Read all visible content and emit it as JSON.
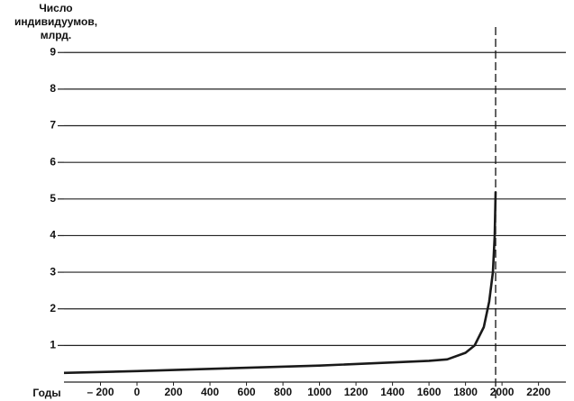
{
  "chart_data": {
    "type": "line",
    "ylabel": [
      "Число",
      "индивидуумов,",
      "млрд."
    ],
    "xlabel": "Годы",
    "x": [
      -400,
      0,
      1000,
      1600,
      1700,
      1800,
      1850,
      1900,
      1930,
      1950,
      1960,
      1965
    ],
    "series": [
      {
        "color": "#1a1a1a",
        "values": [
          0.25,
          0.3,
          0.45,
          0.58,
          0.62,
          0.8,
          1.0,
          1.5,
          2.2,
          3.0,
          4.0,
          5.2
        ]
      }
    ],
    "xlim": [
      -400,
      2350
    ],
    "ylim": [
      0,
      9.4
    ],
    "xticks": [
      {
        "value": -200,
        "label": "– 200"
      },
      0,
      200,
      400,
      600,
      800,
      1000,
      1200,
      1400,
      1600,
      1800,
      2000,
      2200
    ],
    "yticks": [
      1,
      2,
      3,
      4,
      5,
      6,
      7,
      8,
      9
    ],
    "grid": true,
    "vline_x": 1965
  }
}
